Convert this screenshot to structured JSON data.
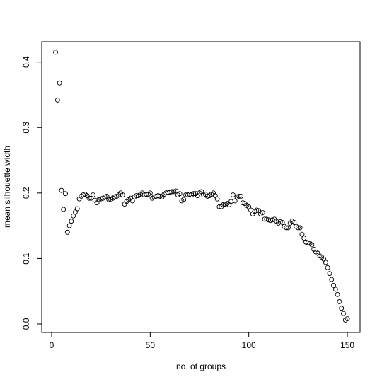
{
  "chart_data": {
    "type": "scatter",
    "xlabel": "no. of groups",
    "ylabel": "mean silhouette width",
    "xlim": [
      -5.02,
      156.44
    ],
    "ylim": [
      -0.013,
      0.431
    ],
    "xticks": [
      0,
      50,
      100,
      150
    ],
    "yticks": [
      {
        "value": 0,
        "label": "0.0"
      },
      {
        "value": 0.1,
        "label": "0.1"
      },
      {
        "value": 0.2,
        "label": "0.2"
      },
      {
        "value": 0.3,
        "label": "0.3"
      },
      {
        "value": 0.4,
        "label": "0.4"
      }
    ],
    "color": "#000000",
    "x": [
      2,
      3,
      4,
      5,
      6,
      7,
      8,
      9,
      10,
      11,
      12,
      13,
      14,
      15,
      16,
      17,
      18,
      19,
      20,
      21,
      22,
      23,
      24,
      25,
      26,
      27,
      28,
      29,
      30,
      31,
      32,
      33,
      34,
      35,
      36,
      37,
      38,
      39,
      40,
      41,
      42,
      43,
      44,
      45,
      46,
      47,
      48,
      49,
      50,
      51,
      52,
      53,
      54,
      55,
      56,
      57,
      58,
      59,
      60,
      61,
      62,
      63,
      64,
      65,
      66,
      67,
      68,
      69,
      70,
      71,
      72,
      73,
      74,
      75,
      76,
      77,
      78,
      79,
      80,
      81,
      82,
      83,
      84,
      85,
      86,
      87,
      88,
      89,
      90,
      91,
      92,
      93,
      94,
      95,
      96,
      97,
      98,
      99,
      100,
      101,
      102,
      103,
      104,
      105,
      106,
      107,
      108,
      109,
      110,
      111,
      112,
      113,
      114,
      115,
      116,
      117,
      118,
      119,
      120,
      121,
      122,
      123,
      124,
      125,
      126,
      127,
      128,
      129,
      130,
      131,
      132,
      133,
      134,
      135,
      136,
      137,
      138,
      139,
      140,
      141,
      142,
      143,
      144,
      145,
      146,
      147,
      148,
      149,
      150
    ],
    "values": [
      0.415,
      0.342,
      0.368,
      0.204,
      0.175,
      0.199,
      0.14,
      0.15,
      0.157,
      0.165,
      0.171,
      0.176,
      0.191,
      0.195,
      0.197,
      0.198,
      0.196,
      0.192,
      0.192,
      0.197,
      0.189,
      0.185,
      0.19,
      0.191,
      0.192,
      0.194,
      0.195,
      0.19,
      0.19,
      0.192,
      0.194,
      0.195,
      0.197,
      0.2,
      0.197,
      0.183,
      0.187,
      0.19,
      0.192,
      0.188,
      0.194,
      0.196,
      0.196,
      0.198,
      0.2,
      0.197,
      0.198,
      0.198,
      0.2,
      0.192,
      0.194,
      0.195,
      0.196,
      0.195,
      0.194,
      0.198,
      0.2,
      0.201,
      0.201,
      0.202,
      0.202,
      0.203,
      0.197,
      0.199,
      0.188,
      0.19,
      0.197,
      0.197,
      0.198,
      0.197,
      0.199,
      0.199,
      0.196,
      0.2,
      0.202,
      0.197,
      0.198,
      0.195,
      0.196,
      0.198,
      0.2,
      0.196,
      0.191,
      0.179,
      0.179,
      0.182,
      0.183,
      0.184,
      0.182,
      0.187,
      0.197,
      0.188,
      0.194,
      0.195,
      0.195,
      0.185,
      0.184,
      0.181,
      0.179,
      0.174,
      0.168,
      0.172,
      0.174,
      0.173,
      0.168,
      0.17,
      0.16,
      0.16,
      0.159,
      0.158,
      0.159,
      0.16,
      0.157,
      0.154,
      0.156,
      0.155,
      0.149,
      0.147,
      0.147,
      0.154,
      0.157,
      0.155,
      0.149,
      0.147,
      0.147,
      0.137,
      0.131,
      0.125,
      0.124,
      0.123,
      0.121,
      0.114,
      0.11,
      0.108,
      0.104,
      0.102,
      0.099,
      0.094,
      0.086,
      0.077,
      0.068,
      0.059,
      0.053,
      0.045,
      0.034,
      0.024,
      0.016,
      0.006,
      0.008
    ]
  }
}
